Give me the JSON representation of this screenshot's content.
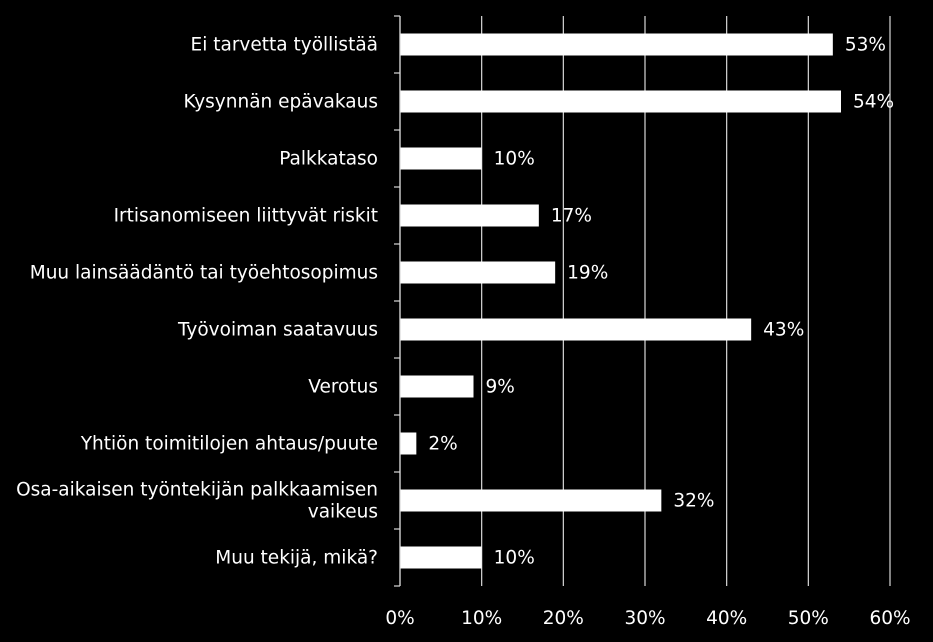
{
  "chart_data": {
    "type": "bar",
    "orientation": "horizontal",
    "categories": [
      "Ei tarvetta työllistää",
      "Kysynnän epävakaus",
      "Palkkataso",
      "Irtisanomiseen liittyvät riskit",
      "Muu lainsäädäntö tai työehtosopimus",
      "Työvoiman saatavuus",
      "Verotus",
      "Yhtiön toimitilojen ahtaus/puute",
      "Osa-aikaisen työntekijän palkkaamisen vaikeus",
      "Muu tekijä, mikä?"
    ],
    "category_lines": [
      [
        "Ei tarvetta työllistää"
      ],
      [
        "Kysynnän epävakaus"
      ],
      [
        "Palkkataso"
      ],
      [
        "Irtisanomiseen liittyvät riskit"
      ],
      [
        "Muu lainsäädäntö tai työehtosopimus"
      ],
      [
        "Työvoiman saatavuus"
      ],
      [
        "Verotus"
      ],
      [
        "Yhtiön toimitilojen ahtaus/puute"
      ],
      [
        "Osa-aikaisen työntekijän palkkaamisen",
        "vaikeus"
      ],
      [
        "Muu tekijä, mikä?"
      ]
    ],
    "values": [
      53,
      54,
      10,
      17,
      19,
      43,
      9,
      2,
      32,
      10
    ],
    "value_labels": [
      "53%",
      "54%",
      "10%",
      "17%",
      "19%",
      "43%",
      "9%",
      "2%",
      "32%",
      "10%"
    ],
    "xlim": [
      0,
      60
    ],
    "xticks": [
      0,
      10,
      20,
      30,
      40,
      50,
      60
    ],
    "xtick_labels": [
      "0%",
      "10%",
      "20%",
      "30%",
      "40%",
      "50%",
      "60%"
    ],
    "title": "",
    "xlabel": "",
    "ylabel": "",
    "grid": "vertical",
    "legend": "none",
    "colors": {
      "background": "#000000",
      "bar": "#ffffff",
      "grid": "#d9d9d9",
      "text": "#ffffff"
    }
  }
}
